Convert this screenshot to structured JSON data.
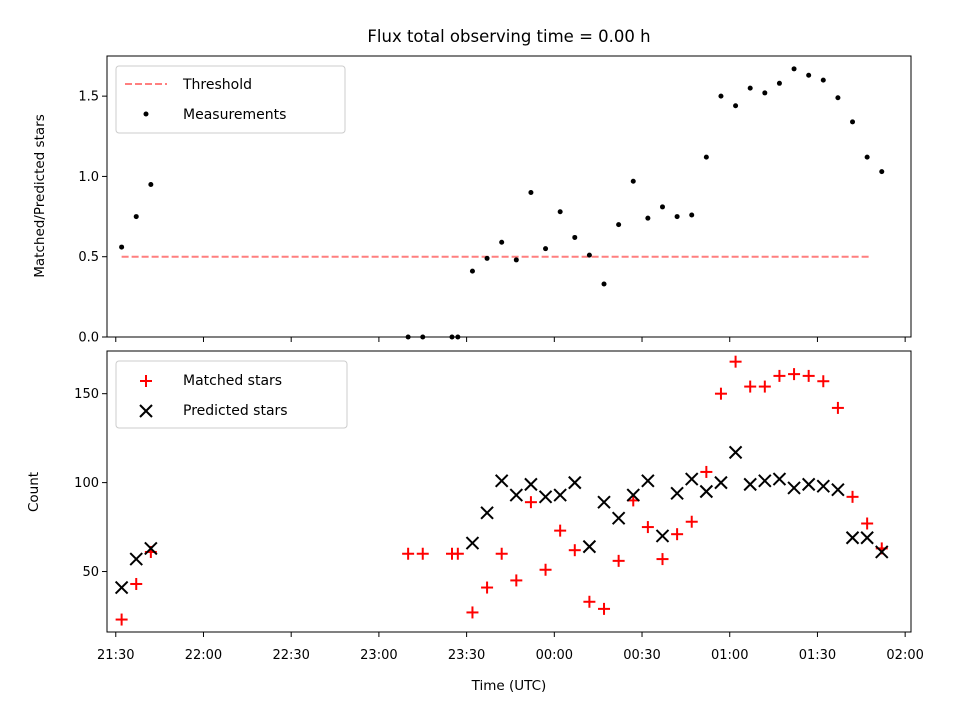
{
  "chart_data": [
    {
      "type": "scatter",
      "title": "Flux total observing time = 0.00 h",
      "xlabel": "",
      "ylabel": "Matched/Predicted stars",
      "ylim": [
        0,
        1.75
      ],
      "yticks": [
        0.0,
        0.5,
        1.0,
        1.5
      ],
      "ytick_labels": [
        "0.0",
        "0.5",
        "1.0",
        "1.5"
      ],
      "legend_position": "upper-left",
      "series": [
        {
          "name": "Threshold",
          "kind": "line",
          "style": "dashed",
          "color": "#ff7f7f",
          "points": [
            [
              "21:32",
              0.5
            ],
            [
              "01:48",
              0.5
            ]
          ]
        },
        {
          "name": "Measurements",
          "kind": "scatter",
          "marker": "dot",
          "color": "#000000",
          "points": [
            [
              "21:32",
              0.56
            ],
            [
              "21:37",
              0.75
            ],
            [
              "21:42",
              0.95
            ],
            [
              "23:10",
              0.0
            ],
            [
              "23:15",
              0.0
            ],
            [
              "23:25",
              0.0
            ],
            [
              "23:27",
              0.0
            ],
            [
              "23:32",
              0.41
            ],
            [
              "23:37",
              0.49
            ],
            [
              "23:42",
              0.59
            ],
            [
              "23:47",
              0.48
            ],
            [
              "23:52",
              0.9
            ],
            [
              "23:57",
              0.55
            ],
            [
              "00:02",
              0.78
            ],
            [
              "00:07",
              0.62
            ],
            [
              "00:12",
              0.51
            ],
            [
              "00:17",
              0.33
            ],
            [
              "00:22",
              0.7
            ],
            [
              "00:27",
              0.97
            ],
            [
              "00:32",
              0.74
            ],
            [
              "00:37",
              0.81
            ],
            [
              "00:42",
              0.75
            ],
            [
              "00:47",
              0.76
            ],
            [
              "00:52",
              1.12
            ],
            [
              "00:57",
              1.5
            ],
            [
              "01:02",
              1.44
            ],
            [
              "01:07",
              1.55
            ],
            [
              "01:12",
              1.52
            ],
            [
              "01:17",
              1.58
            ],
            [
              "01:22",
              1.67
            ],
            [
              "01:27",
              1.63
            ],
            [
              "01:32",
              1.6
            ],
            [
              "01:37",
              1.49
            ],
            [
              "01:42",
              1.34
            ],
            [
              "01:47",
              1.12
            ],
            [
              "01:52",
              1.03
            ]
          ]
        }
      ]
    },
    {
      "type": "scatter",
      "title": "",
      "xlabel": "Time (UTC)",
      "ylabel": "Count",
      "ylim": [
        16,
        174
      ],
      "yticks": [
        50,
        100,
        150
      ],
      "ytick_labels": [
        "50",
        "100",
        "150"
      ],
      "xlim": [
        "21:27",
        "02:02"
      ],
      "xticks": [
        "21:30",
        "22:00",
        "22:30",
        "23:00",
        "23:30",
        "00:00",
        "00:30",
        "01:00",
        "01:30",
        "02:00"
      ],
      "legend_position": "upper-left",
      "series": [
        {
          "name": "Matched stars",
          "kind": "scatter",
          "marker": "plus",
          "color": "#ff0000",
          "points": [
            [
              "21:32",
              23
            ],
            [
              "21:37",
              43
            ],
            [
              "21:42",
              61
            ],
            [
              "23:10",
              60
            ],
            [
              "23:15",
              60
            ],
            [
              "23:25",
              60
            ],
            [
              "23:27",
              60
            ],
            [
              "23:32",
              27
            ],
            [
              "23:37",
              41
            ],
            [
              "23:42",
              60
            ],
            [
              "23:47",
              45
            ],
            [
              "23:52",
              89
            ],
            [
              "23:57",
              51
            ],
            [
              "00:02",
              73
            ],
            [
              "00:07",
              62
            ],
            [
              "00:12",
              33
            ],
            [
              "00:17",
              29
            ],
            [
              "00:22",
              56
            ],
            [
              "00:27",
              90
            ],
            [
              "00:32",
              75
            ],
            [
              "00:37",
              57
            ],
            [
              "00:42",
              71
            ],
            [
              "00:47",
              78
            ],
            [
              "00:52",
              106
            ],
            [
              "00:57",
              150
            ],
            [
              "01:02",
              168
            ],
            [
              "01:07",
              154
            ],
            [
              "01:12",
              154
            ],
            [
              "01:17",
              160
            ],
            [
              "01:22",
              161
            ],
            [
              "01:27",
              160
            ],
            [
              "01:32",
              157
            ],
            [
              "01:37",
              142
            ],
            [
              "01:42",
              92
            ],
            [
              "01:47",
              77
            ],
            [
              "01:52",
              63
            ]
          ]
        },
        {
          "name": "Predicted stars",
          "kind": "scatter",
          "marker": "x",
          "color": "#000000",
          "points": [
            [
              "21:32",
              41
            ],
            [
              "21:37",
              57
            ],
            [
              "21:42",
              63
            ],
            [
              "23:32",
              66
            ],
            [
              "23:37",
              83
            ],
            [
              "23:42",
              101
            ],
            [
              "23:47",
              93
            ],
            [
              "23:52",
              99
            ],
            [
              "23:57",
              92
            ],
            [
              "00:02",
              93
            ],
            [
              "00:07",
              100
            ],
            [
              "00:12",
              64
            ],
            [
              "00:17",
              89
            ],
            [
              "00:22",
              80
            ],
            [
              "00:27",
              93
            ],
            [
              "00:32",
              101
            ],
            [
              "00:37",
              70
            ],
            [
              "00:42",
              94
            ],
            [
              "00:47",
              102
            ],
            [
              "00:52",
              95
            ],
            [
              "00:57",
              100
            ],
            [
              "01:02",
              117
            ],
            [
              "01:07",
              99
            ],
            [
              "01:12",
              101
            ],
            [
              "01:17",
              102
            ],
            [
              "01:22",
              97
            ],
            [
              "01:27",
              99
            ],
            [
              "01:32",
              98
            ],
            [
              "01:37",
              96
            ],
            [
              "01:42",
              69
            ],
            [
              "01:47",
              69
            ],
            [
              "01:52",
              61
            ]
          ]
        }
      ]
    }
  ]
}
